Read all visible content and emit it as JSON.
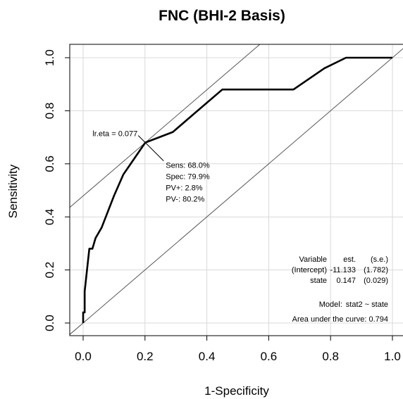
{
  "chart_data": {
    "type": "line",
    "title": "FNC (BHI-2 Basis)",
    "xlabel": "1-Specificity",
    "ylabel": "Sensitivity",
    "xlim": [
      0,
      1
    ],
    "ylim": [
      0,
      1
    ],
    "x_ticks": [
      "0.0",
      "0.2",
      "0.4",
      "0.6",
      "0.8",
      "1.0"
    ],
    "y_ticks": [
      "0.0",
      "0.2",
      "0.4",
      "0.6",
      "0.8",
      "1.0"
    ],
    "grid": true,
    "series": [
      {
        "x": [
          0,
          0,
          0.005,
          0.005,
          0.02,
          0.02,
          0.03,
          0.04,
          0.06,
          0.1,
          0.13,
          0.201,
          0.29,
          0.37,
          0.45,
          0.68,
          0.78,
          0.85,
          1.0
        ],
        "y": [
          0,
          0.04,
          0.04,
          0.12,
          0.28,
          0.28,
          0.28,
          0.32,
          0.36,
          0.48,
          0.56,
          0.68,
          0.72,
          0.8,
          0.88,
          0.88,
          0.96,
          1.0,
          1.0
        ]
      }
    ],
    "reference_lines": [
      {
        "intercept": 0,
        "slope": 1
      },
      {
        "intercept": 0.479,
        "slope": 1
      }
    ],
    "optimal_point": {
      "x": 0.201,
      "y": 0.68,
      "label": "lr.eta = 0.077",
      "stats": [
        "Sens: 68.0%",
        "Spec: 79.9%",
        "PV+: 2.8%",
        "PV-: 80.2%"
      ]
    },
    "model_table": {
      "header": [
        "Variable",
        "est.",
        "(s.e.)"
      ],
      "rows": [
        [
          "(Intercept)",
          "-11.133",
          "(1.782)"
        ],
        [
          "state",
          "0.147",
          "(0.029)"
        ]
      ]
    },
    "model_label": "Model:",
    "model_formula": "stat2 ~ state",
    "auc_label": "Area under the curve:",
    "auc_value": "0.794"
  }
}
